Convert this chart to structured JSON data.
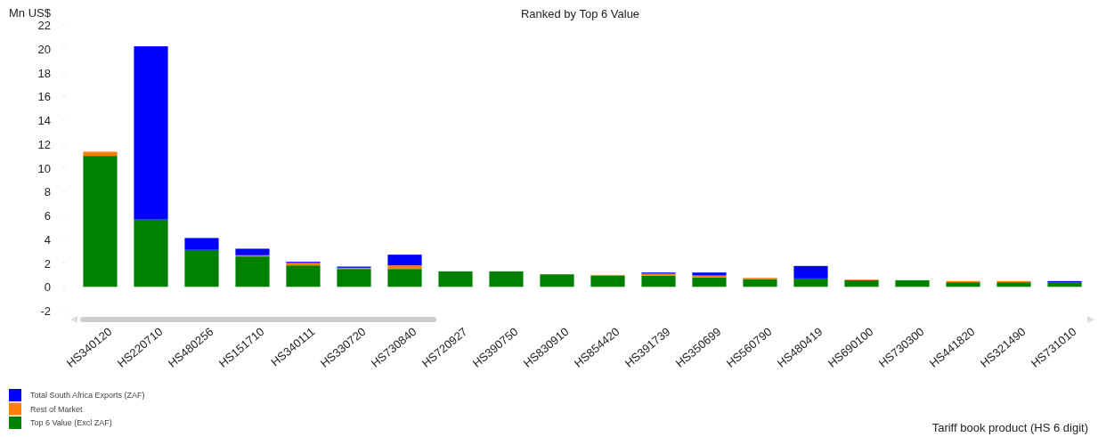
{
  "chart_data": {
    "type": "bar",
    "title": "Ranked by Top 6 Value",
    "xlabel": "Tariff book product (HS 6 digit)",
    "ylabel": "Mn US$",
    "categories": [
      "HS340120",
      "HS220710",
      "HS480256",
      "HS151710",
      "HS340111",
      "HS330720",
      "HS730840",
      "HS720927",
      "HS390750",
      "HS830910",
      "HS854420",
      "HS391739",
      "HS350699",
      "HS560790",
      "HS480419",
      "HS690100",
      "HS730300",
      "HS441820",
      "HS321490",
      "HS731010"
    ],
    "stacked": true,
    "series": [
      {
        "name": "Top 6 Value (Excl ZAF)",
        "color": "#008000",
        "values": [
          11.0,
          5.65,
          3.1,
          2.55,
          1.8,
          1.5,
          1.5,
          1.3,
          1.3,
          1.05,
          0.95,
          0.95,
          0.8,
          0.65,
          0.7,
          0.56,
          0.55,
          0.38,
          0.38,
          0.38
        ]
      },
      {
        "name": "Rest of Market",
        "color": "#ff8000",
        "values": [
          0.35,
          0,
          0,
          0.1,
          0.2,
          0.1,
          0.3,
          0,
          0,
          0,
          0.05,
          0.15,
          0.15,
          0.1,
          0,
          0.06,
          0,
          0.1,
          0.1,
          0
        ]
      },
      {
        "name": "Total South Africa Exports (ZAF)",
        "color": "#0000ff",
        "values": [
          0,
          14.55,
          1.0,
          0.55,
          0.1,
          0.1,
          0.9,
          0,
          0,
          0,
          0,
          0.1,
          0.25,
          0,
          1.05,
          0,
          0,
          0,
          0,
          0.1
        ]
      }
    ],
    "ylim": [
      -2,
      22
    ],
    "yticks": [
      -2,
      0,
      2,
      4,
      6,
      8,
      10,
      12,
      14,
      16,
      18,
      20,
      22
    ],
    "legend": "bottom left"
  }
}
